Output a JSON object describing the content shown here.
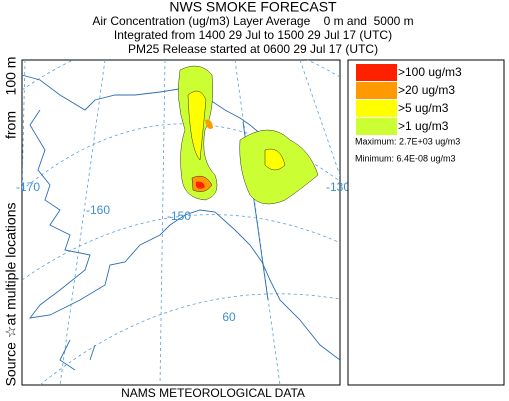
{
  "header": {
    "title": "NWS SMOKE FORECAST",
    "lines": [
      "Air Concentration (ug/m3) Layer Average    0 m and  5000 m",
      "Integrated from 1400 29 Jul to 1500 29 Jul 17 (UTC)",
      "PM25 Release started at 0600 29 Jul 17 (UTC)"
    ]
  },
  "side_label": [
    "Source ☆",
    "at multiple locations",
    "from",
    "100 m"
  ],
  "footer": "NAMS METEOROLOGICAL DATA",
  "legend": {
    "items": [
      {
        "label": ">100 ug/m3",
        "color": "#ff2000"
      },
      {
        "label": ">20 ug/m3",
        "color": "#ff9900"
      },
      {
        "label": ">5 ug/m3",
        "color": "#ffff00"
      },
      {
        "label": ">1 ug/m3",
        "color": "#ccff33"
      }
    ],
    "maximum": "Maximum: 2.7E+03 ug/m3",
    "minimum": "Minimum: 6.4E-08 ug/m3"
  },
  "map": {
    "grid_labels": [
      "-170",
      "-160",
      "-150",
      "-130",
      "60"
    ]
  }
}
